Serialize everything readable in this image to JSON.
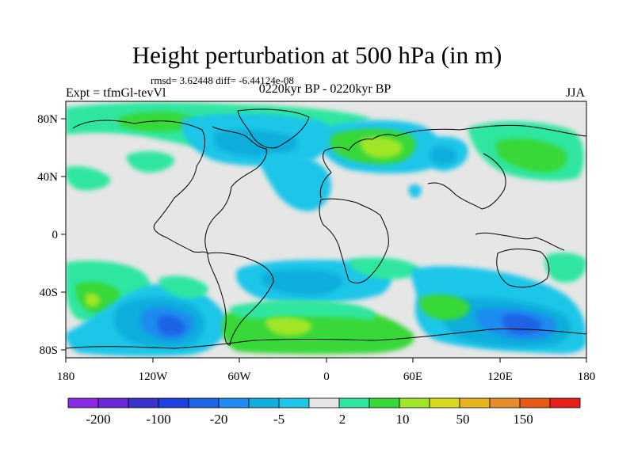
{
  "title": "Height perturbation at 500 hPa (in m)",
  "stats": {
    "rmsd_label": "rmsd=",
    "rmsd": "3.62448",
    "diff_label": "diff=",
    "diff": "-6.44124e-08"
  },
  "experiment": "Expt = tfmGl-tevVl",
  "period": "0220kyr BP - 0220kyr BP",
  "season": "JJA",
  "axes": {
    "x_ticks": [
      "180",
      "120W",
      "60W",
      "0",
      "60E",
      "120E",
      "180"
    ],
    "y_ticks": [
      "80N",
      "40N",
      "0",
      "40S",
      "80S"
    ]
  },
  "colorbar": {
    "colors": [
      "#8a2be2",
      "#6a28d8",
      "#3a33c8",
      "#1f3fe0",
      "#1e64e6",
      "#1e8cf0",
      "#10aedc",
      "#1ec6e8",
      "#e6e6e6",
      "#2ee6a0",
      "#38d838",
      "#a0e628",
      "#d8d81e",
      "#e6b41e",
      "#e68c28",
      "#e65a14",
      "#e61e1e"
    ],
    "labels": [
      "-200",
      "-100",
      "-20",
      "-5",
      "2",
      "10",
      "50",
      "150"
    ]
  },
  "palette": {
    "ocean_gray": "#e6e6e6",
    "light_cyan": "#1ec6e8",
    "cyan": "#10aedc",
    "blue": "#1e8cf0",
    "deep_blue": "#1e64e6",
    "teal_green": "#2ee6a0",
    "green": "#38d838",
    "yellow_green": "#a0e628"
  }
}
